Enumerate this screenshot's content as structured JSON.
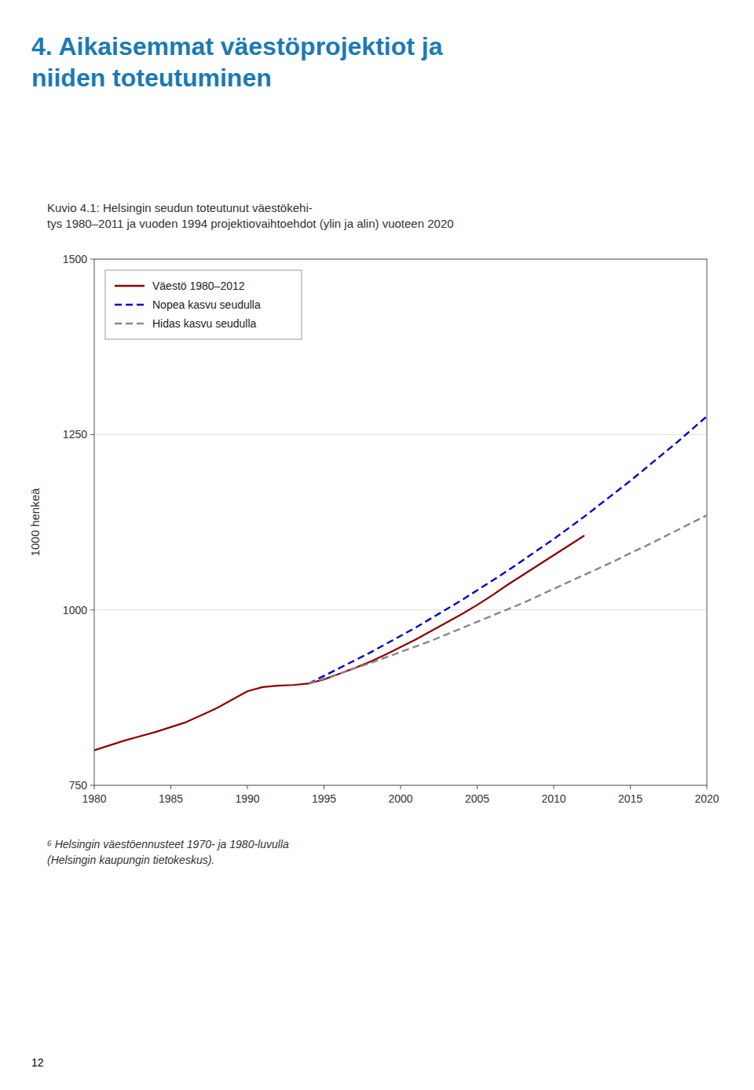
{
  "chart_data": {
    "type": "line",
    "title": [
      "4. Aikaisemmat väestöprojektiot ja",
      "niiden toteutuminen"
    ],
    "subtitle": [
      "Kuvio 4.1: Helsingin seudun toteutunut väestökehi-",
      "tys 1980–2011 ja vuoden 1994 projektiovaihtoehdot (ylin ja alin) vuoteen 2020"
    ],
    "annotations": [
      "⁶ Helsingin väestöennusteet 1970- ja 1980-luvulla",
      "(Helsingin kaupungin tietokeskus).",
      "12"
    ],
    "ylabel": "1000 henkeä",
    "xlim": [
      1980,
      2020
    ],
    "ylim": [
      750,
      1500
    ],
    "xticks": [
      1980,
      1985,
      1990,
      1995,
      2000,
      2005,
      2010,
      2015,
      2020
    ],
    "yticks": [
      750,
      1000,
      1250,
      1500
    ],
    "grid": true,
    "legend": "upper left",
    "series": [
      {
        "name": "Väestö 1980–2012",
        "color": "#8B0000",
        "line_style": "solid",
        "x": [
          1980,
          1981,
          1982,
          1983,
          1984,
          1985,
          1986,
          1987,
          1988,
          1989,
          1990,
          1991,
          1992,
          1993,
          1994,
          1995,
          1996,
          1997,
          1998,
          1999,
          2000,
          2001,
          2002,
          2003,
          2004,
          2005,
          2006,
          2007,
          2008,
          2009,
          2010,
          2011,
          2012
        ],
        "values": [
          800,
          807,
          814,
          820,
          826,
          833,
          840,
          850,
          860,
          872,
          884,
          890,
          892,
          893,
          895,
          901,
          909,
          917,
          926,
          936,
          947,
          958,
          970,
          982,
          994,
          1007,
          1021,
          1036,
          1050,
          1064,
          1078,
          1092,
          1106
        ]
      },
      {
        "name": "Nopea kasvu seudulla",
        "color": "#0000CC",
        "line_style": "dashed",
        "x": [
          1994,
          1995,
          1996,
          1997,
          1998,
          1999,
          2000,
          2001,
          2002,
          2003,
          2004,
          2005,
          2006,
          2007,
          2008,
          2009,
          2010,
          2011,
          2012,
          2013,
          2014,
          2015,
          2016,
          2017,
          2018,
          2019,
          2020
        ],
        "values": [
          895,
          906,
          917,
          928,
          939,
          951,
          963,
          975,
          988,
          1001,
          1014,
          1028,
          1042,
          1056,
          1071,
          1086,
          1101,
          1117,
          1133,
          1150,
          1167,
          1184,
          1202,
          1220,
          1238,
          1257,
          1276
        ]
      },
      {
        "name": "Hidas kasvu seudulla",
        "color": "#888888",
        "line_style": "dashed",
        "x": [
          1994,
          1995,
          1996,
          1997,
          1998,
          1999,
          2000,
          2001,
          2002,
          2003,
          2004,
          2005,
          2006,
          2007,
          2008,
          2009,
          2010,
          2011,
          2012,
          2013,
          2014,
          2015,
          2016,
          2017,
          2018,
          2019,
          2020
        ],
        "values": [
          895,
          902,
          909,
          917,
          924,
          932,
          940,
          948,
          956,
          965,
          974,
          983,
          992,
          1001,
          1010,
          1020,
          1030,
          1040,
          1050,
          1060,
          1070,
          1081,
          1091,
          1102,
          1113,
          1124,
          1135
        ]
      }
    ]
  }
}
